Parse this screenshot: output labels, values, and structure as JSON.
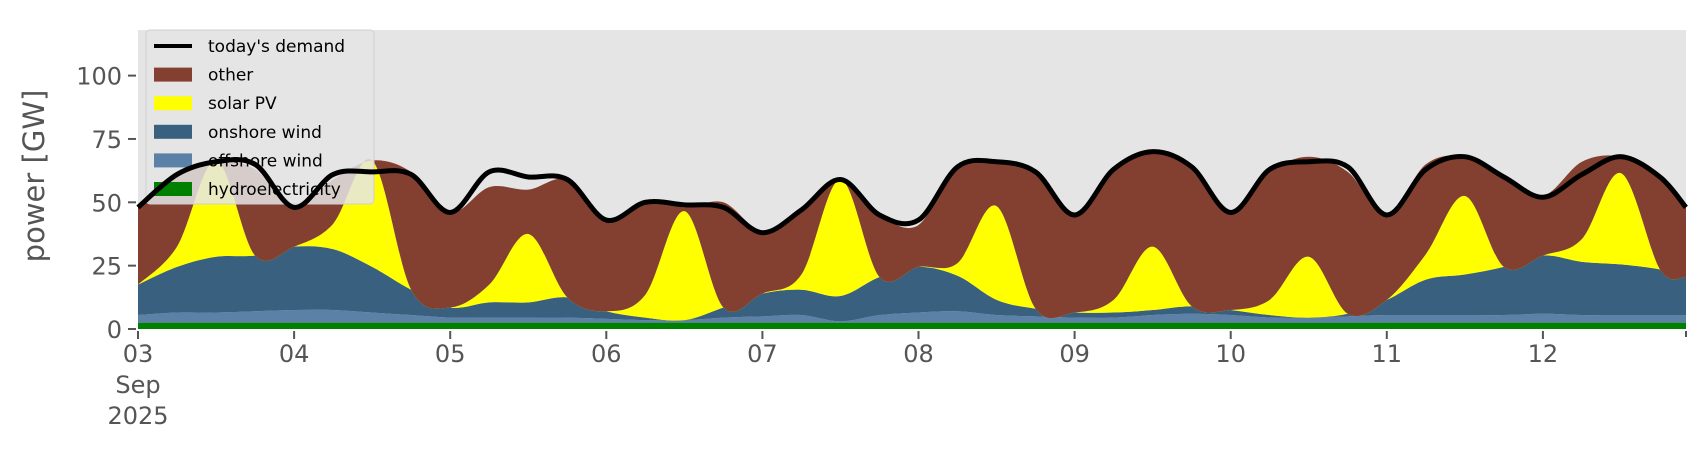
{
  "chart_data": {
    "type": "area",
    "stacked": true,
    "title": "",
    "xlabel": "",
    "ylabel": "power [GW]",
    "ylim": [
      0,
      118
    ],
    "yticks": [
      0,
      25,
      50,
      75,
      100
    ],
    "xlim": [
      "2025-09-03T00:00",
      "2025-09-12T22:00"
    ],
    "xtick_labels": [
      {
        "date": "2025-09-03",
        "label": "03",
        "sub1": "Sep",
        "sub2": "2025"
      },
      {
        "date": "2025-09-04",
        "label": "04"
      },
      {
        "date": "2025-09-05",
        "label": "05"
      },
      {
        "date": "2025-09-06",
        "label": "06"
      },
      {
        "date": "2025-09-07",
        "label": "07"
      },
      {
        "date": "2025-09-08",
        "label": "08"
      },
      {
        "date": "2025-09-09",
        "label": "09"
      },
      {
        "date": "2025-09-10",
        "label": "10"
      },
      {
        "date": "2025-09-11",
        "label": "11"
      },
      {
        "date": "2025-09-12",
        "label": "12"
      }
    ],
    "grid": false,
    "legend_position": "top-left",
    "background": "#e5e5e5",
    "x": [
      "2025-09-03T00:00",
      "2025-09-03T06:00",
      "2025-09-03T12:00",
      "2025-09-03T18:00",
      "2025-09-04T00:00",
      "2025-09-04T06:00",
      "2025-09-04T12:00",
      "2025-09-04T18:00",
      "2025-09-05T00:00",
      "2025-09-05T06:00",
      "2025-09-05T12:00",
      "2025-09-05T18:00",
      "2025-09-06T00:00",
      "2025-09-06T06:00",
      "2025-09-06T12:00",
      "2025-09-06T18:00",
      "2025-09-07T00:00",
      "2025-09-07T06:00",
      "2025-09-07T12:00",
      "2025-09-07T18:00",
      "2025-09-08T00:00",
      "2025-09-08T06:00",
      "2025-09-08T12:00",
      "2025-09-08T18:00",
      "2025-09-09T00:00",
      "2025-09-09T06:00",
      "2025-09-09T12:00",
      "2025-09-09T18:00",
      "2025-09-10T00:00",
      "2025-09-10T06:00",
      "2025-09-10T12:00",
      "2025-09-10T18:00",
      "2025-09-11T00:00",
      "2025-09-11T06:00",
      "2025-09-11T12:00",
      "2025-09-11T18:00",
      "2025-09-12T00:00",
      "2025-09-12T06:00",
      "2025-09-12T12:00",
      "2025-09-12T18:00",
      "2025-09-12T22:00"
    ],
    "series": [
      {
        "name": "hydroelectricity",
        "color": "#008000",
        "values": [
          2.5,
          2.5,
          2.5,
          2.5,
          2.5,
          2.5,
          2.5,
          2.5,
          2.5,
          2.5,
          2.5,
          2.5,
          2.5,
          2.5,
          2.5,
          2.5,
          2.5,
          2.5,
          2.5,
          2.5,
          2.5,
          2.5,
          2.5,
          2.5,
          2.5,
          2.5,
          2.5,
          2.5,
          2.5,
          2.5,
          2.5,
          2.5,
          2.5,
          2.5,
          2.5,
          2.5,
          2.5,
          2.5,
          2.5,
          2.5,
          2.5
        ]
      },
      {
        "name": "offshore wind",
        "color": "#5b82a6",
        "values": [
          3,
          4,
          4,
          4.5,
          5,
          5,
          4,
          3,
          2,
          2,
          2,
          2,
          1.5,
          1,
          1,
          2,
          2.5,
          3,
          0.5,
          3,
          4,
          4.5,
          3,
          2.5,
          2,
          2,
          3,
          3.5,
          3,
          2,
          2,
          2.5,
          3,
          3,
          3,
          3,
          3.5,
          3,
          3,
          3,
          3
        ]
      },
      {
        "name": "onshore wind",
        "color": "#39607f",
        "values": [
          12,
          18,
          22,
          22,
          25,
          24,
          18,
          10,
          4,
          6,
          6,
          8,
          3,
          1,
          0,
          4,
          9,
          10,
          10,
          15,
          18,
          14,
          6,
          3,
          2,
          2,
          2,
          3,
          2,
          1,
          0,
          1,
          6,
          14,
          16,
          19,
          23,
          21,
          20,
          18,
          15
        ]
      },
      {
        "name": "solar PV",
        "color": "#ffff00",
        "values": [
          0,
          8,
          38,
          0,
          0,
          10,
          42,
          0,
          0,
          7,
          27,
          0,
          0,
          9,
          43,
          0,
          0,
          6,
          46,
          0,
          0,
          5,
          37,
          0,
          0,
          5,
          25,
          0,
          0,
          6,
          24,
          0,
          0,
          10,
          31,
          0,
          0,
          9,
          36,
          0,
          0
        ]
      },
      {
        "name": "other",
        "color": "#834030",
        "values": [
          30.5,
          28.5,
          0,
          34,
          15.5,
          17.5,
          0,
          46.5,
          37.5,
          38.5,
          17.5,
          46.5,
          36.5,
          37.5,
          1.5,
          41.5,
          24.5,
          25.5,
          0,
          24.5,
          16.5,
          38.5,
          17.5,
          54,
          38.5,
          51.5,
          37.5,
          55,
          38.5,
          50.5,
          39.5,
          56,
          33.5,
          35.5,
          15.5,
          35.5,
          23.5,
          30.5,
          6.5,
          36.5,
          27.5
        ]
      }
    ],
    "demand": {
      "name": "today's demand",
      "color": "#000000",
      "values": [
        48,
        61,
        66,
        65,
        48,
        61,
        62,
        61,
        46,
        62,
        60,
        59,
        43,
        50,
        49,
        48,
        38,
        47,
        59,
        45,
        43,
        64,
        66,
        62,
        45,
        63,
        70,
        64,
        46,
        63,
        66,
        64,
        45,
        63,
        68,
        60,
        52,
        61,
        68,
        60,
        48
      ]
    },
    "legend_entries": [
      {
        "label": "today's demand",
        "color": "#000000",
        "kind": "line"
      },
      {
        "label": "other",
        "color": "#834030",
        "kind": "patch"
      },
      {
        "label": "solar PV",
        "color": "#ffff00",
        "kind": "patch"
      },
      {
        "label": "onshore wind",
        "color": "#39607f",
        "kind": "patch"
      },
      {
        "label": "offshore wind",
        "color": "#5b82a6",
        "kind": "patch"
      },
      {
        "label": "hydroelectricity",
        "color": "#008000",
        "kind": "patch"
      }
    ]
  }
}
